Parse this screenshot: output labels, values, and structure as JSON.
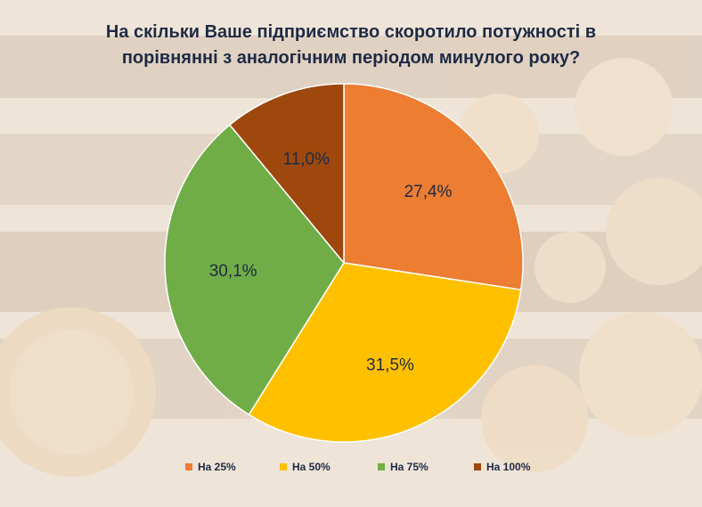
{
  "chart_data": {
    "type": "pie",
    "title": [
      "На скільки Ваше підприємство скоротило потужності в",
      "порівнянні з аналогічним періодом минулого року?"
    ],
    "categories": [
      "На 25%",
      "На 50%",
      "На 75%",
      "На 100%"
    ],
    "values": [
      27.4,
      31.5,
      30.1,
      11.0
    ],
    "labels": [
      "27,4%",
      "31,5%",
      "30,1%",
      "11,0%"
    ],
    "colors": [
      "#ed7d31",
      "#ffc000",
      "#70ad47",
      "#9e480e"
    ],
    "legend_position": "bottom"
  }
}
